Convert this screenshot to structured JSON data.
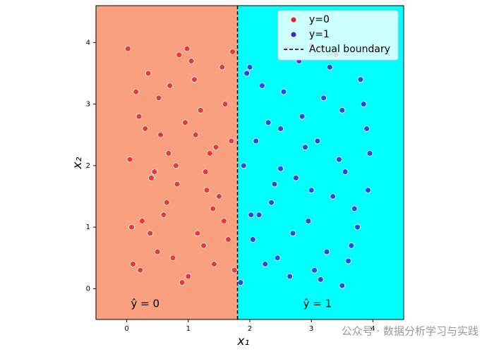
{
  "chart_data": {
    "type": "scatter",
    "xlabel": "x₁",
    "ylabel": "x₂",
    "xlim": [
      -0.5,
      4.5
    ],
    "ylim": [
      -0.5,
      4.6
    ],
    "xticks": [
      0,
      1,
      2,
      3,
      4
    ],
    "yticks": [
      0,
      1,
      2,
      3,
      4
    ],
    "region_colors": [
      "#fba07e",
      "#00ffff"
    ],
    "region_labels": [
      "ŷ = 0",
      "ŷ = 1"
    ],
    "boundary": {
      "name": "Actual boundary",
      "x": 1.8,
      "color": "#000000"
    },
    "legend": "upper right",
    "series": [
      {
        "name": "y=0",
        "color": "#e5262c",
        "x": [
          0.02,
          0.15,
          0.3,
          0.45,
          0.6,
          0.75,
          0.9,
          1.05,
          1.2,
          1.35,
          1.5,
          1.65,
          1.75,
          0.1,
          0.25,
          0.4,
          0.55,
          0.7,
          0.85,
          1.0,
          1.15,
          1.3,
          1.45,
          1.6,
          0.05,
          0.2,
          0.35,
          0.5,
          0.65,
          0.8,
          0.95,
          1.1,
          1.25,
          1.4,
          1.55,
          1.7,
          0.08,
          0.22,
          0.38,
          0.52,
          0.68,
          0.82,
          0.98,
          1.12,
          1.28,
          1.42,
          1.58,
          1.72
        ],
        "values": [
          3.9,
          3.2,
          2.6,
          1.9,
          1.2,
          0.5,
          0.1,
          3.7,
          2.9,
          2.2,
          1.5,
          0.8,
          0.3,
          0.4,
          1.1,
          1.8,
          2.5,
          3.3,
          3.8,
          0.2,
          0.9,
          1.6,
          2.3,
          3.0,
          2.1,
          2.8,
          3.5,
          0.6,
          1.4,
          2.0,
          2.7,
          3.4,
          0.7,
          1.3,
          3.6,
          2.4,
          1.0,
          0.3,
          0.9,
          3.1,
          2.2,
          1.7,
          3.9,
          2.5,
          1.9,
          0.4,
          1.1,
          3.85
        ]
      },
      {
        "name": "y=1",
        "color": "#2b2be0",
        "x": [
          1.85,
          2.0,
          2.15,
          2.3,
          2.45,
          2.6,
          2.75,
          2.9,
          3.05,
          3.2,
          3.35,
          3.5,
          3.65,
          3.8,
          3.95,
          1.9,
          2.05,
          2.2,
          2.35,
          2.5,
          2.65,
          2.8,
          2.95,
          3.1,
          3.25,
          3.4,
          3.55,
          3.7,
          3.85,
          1.95,
          2.1,
          2.25,
          2.4,
          2.55,
          2.7,
          2.85,
          3.0,
          3.15,
          3.3,
          3.45,
          3.6,
          3.75,
          3.9,
          2.02,
          2.5,
          3.0,
          3.5,
          3.92
        ],
        "values": [
          0.1,
          3.6,
          1.2,
          2.7,
          0.5,
          3.9,
          1.8,
          2.3,
          0.3,
          3.1,
          1.5,
          2.9,
          0.7,
          3.4,
          2.2,
          2.0,
          0.8,
          3.3,
          1.4,
          2.6,
          0.2,
          3.7,
          1.1,
          2.4,
          0.6,
          3.8,
          1.9,
          1.3,
          3.0,
          3.5,
          2.4,
          0.4,
          1.7,
          3.2,
          0.9,
          2.8,
          1.6,
          0.15,
          3.6,
          2.1,
          0.45,
          1.0,
          2.6,
          1.2,
          1.95,
          3.95,
          0.05,
          1.6
        ]
      }
    ]
  },
  "watermark": "公众号 · 数据分析学习与实践"
}
